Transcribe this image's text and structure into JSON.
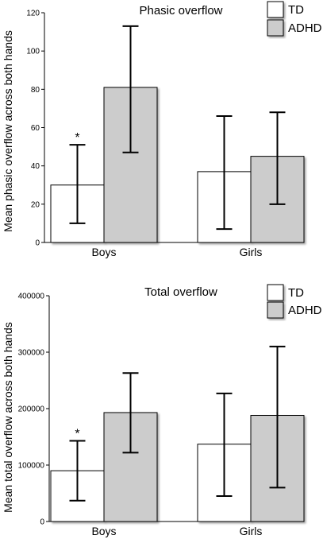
{
  "chart_data": [
    {
      "type": "bar",
      "title": "Phasic overflow",
      "ylabel": "Mean phasic overflow across both hands",
      "xlabel": "",
      "categories": [
        "Boys",
        "Girls"
      ],
      "ylim": [
        0,
        120
      ],
      "yticks": [
        "0",
        "20",
        "40",
        "60",
        "80",
        "100",
        "120"
      ],
      "series": [
        {
          "name": "TD",
          "color": "#ffffff",
          "values": [
            30,
            37
          ],
          "error_low": [
            10,
            7
          ],
          "error_high": [
            51,
            66
          ]
        },
        {
          "name": "ADHD",
          "color": "#cccccc",
          "values": [
            81,
            45
          ],
          "error_low": [
            47,
            20
          ],
          "error_high": [
            113,
            68
          ]
        }
      ],
      "annotations": [
        {
          "text": "*",
          "series": "TD",
          "category": "Boys"
        }
      ],
      "legend": "top-right",
      "grid": false
    },
    {
      "type": "bar",
      "title": "Total overflow",
      "ylabel": "Mean total overflow across both hands",
      "xlabel": "",
      "categories": [
        "Boys",
        "Girls"
      ],
      "ylim": [
        0,
        400000
      ],
      "yticks": [
        "0",
        "100000",
        "200000",
        "300000",
        "400000"
      ],
      "series": [
        {
          "name": "TD",
          "color": "#ffffff",
          "values": [
            90000,
            137000
          ],
          "error_low": [
            37000,
            45000
          ],
          "error_high": [
            143000,
            227000
          ]
        },
        {
          "name": "ADHD",
          "color": "#cccccc",
          "values": [
            193000,
            188000
          ],
          "error_low": [
            122000,
            60000
          ],
          "error_high": [
            263000,
            310000
          ]
        }
      ],
      "annotations": [
        {
          "text": "*",
          "series": "TD",
          "category": "Boys"
        }
      ],
      "legend": "top-right",
      "grid": false
    }
  ]
}
